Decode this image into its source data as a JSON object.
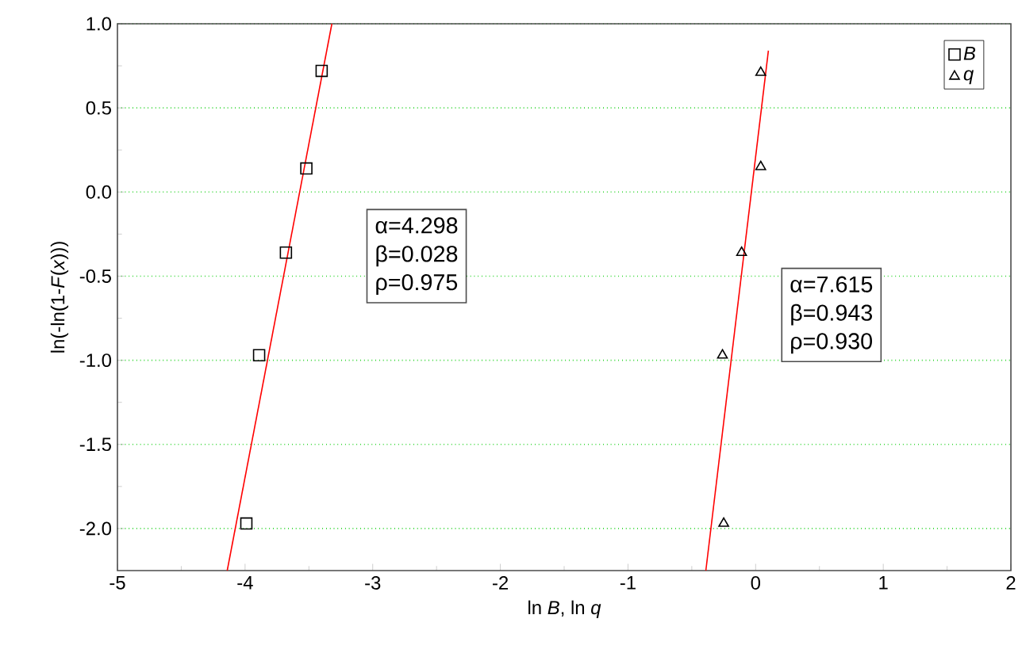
{
  "chart_data": {
    "type": "scatter",
    "xlabel": "ln *B*, ln *q*",
    "ylabel": "ln(-ln(1-*F*(*x*)))",
    "xlim": [
      -5,
      2
    ],
    "xticks": [
      -5,
      -4,
      -3,
      -2,
      -1,
      0,
      1,
      2
    ],
    "ylim": [
      -2.25,
      1.0
    ],
    "yticks": [
      {
        "value": -2.0,
        "label": "-2.0"
      },
      {
        "value": -1.5,
        "label": "-1.5"
      },
      {
        "value": -1.0,
        "label": "-1.0"
      },
      {
        "value": -0.5,
        "label": "-0.5"
      },
      {
        "value": 0.0,
        "label": "0.0"
      },
      {
        "value": 0.5,
        "label": "0.5"
      },
      {
        "value": 1.0,
        "label": "1.0"
      }
    ],
    "grid": "y",
    "legend": "top right",
    "series": [
      {
        "name": "*B*",
        "color": "#000000",
        "marker": "square",
        "x": [
          -3.4,
          -3.52,
          -3.68,
          -3.89,
          -3.99
        ],
        "values": [
          0.72,
          0.14,
          -0.36,
          -0.97,
          -1.97
        ]
      },
      {
        "name": "*q*",
        "color": "#000000",
        "marker": "triangle",
        "x": [
          0.04,
          0.04,
          -0.11,
          -0.26,
          -0.25
        ],
        "values": [
          0.71,
          0.15,
          -0.36,
          -0.97,
          -1.97
        ]
      },
      {
        "type": "line",
        "color": "#ff0000",
        "marker": "none",
        "x": [
          -4.14,
          -3.32
        ],
        "values": [
          -2.25,
          1.0
        ]
      },
      {
        "type": "line",
        "color": "#ff0000",
        "marker": "none",
        "x": [
          -0.39,
          0.1
        ],
        "values": [
          -2.25,
          0.84
        ]
      }
    ],
    "annotations": [
      "α=4.298",
      "β=0.028",
      "ρ=0.975",
      "α=7.615",
      "β=0.943",
      "ρ=0.930"
    ]
  }
}
